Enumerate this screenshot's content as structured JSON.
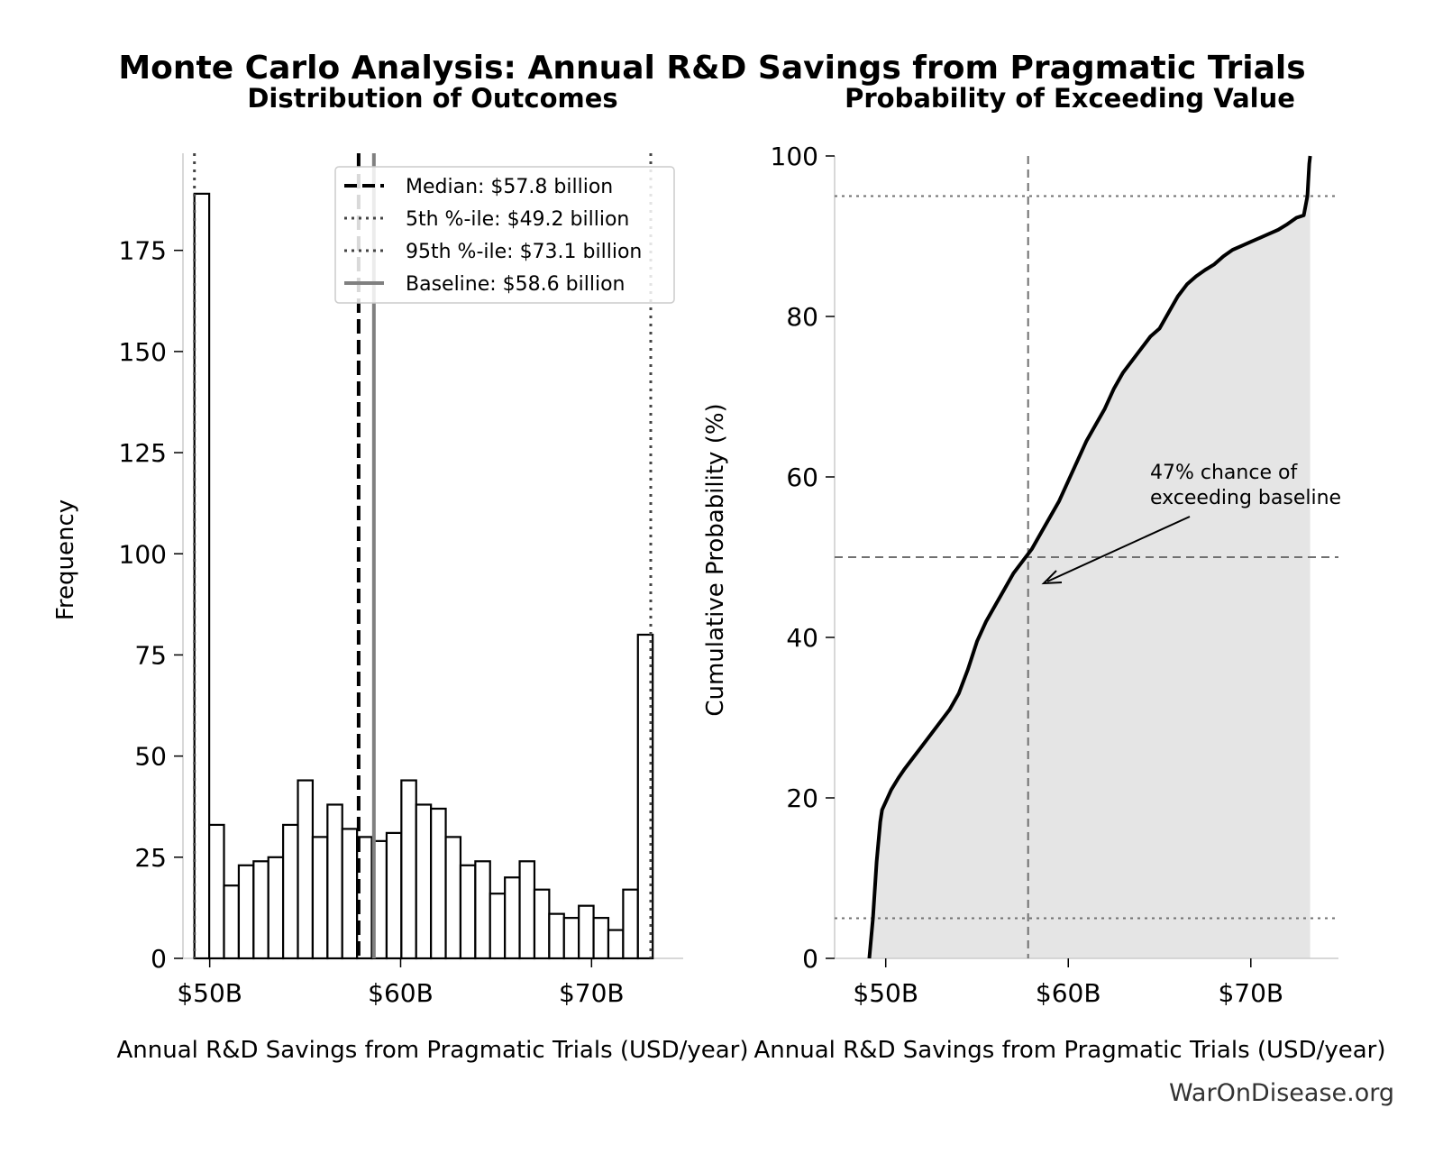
{
  "suptitle": "Monte Carlo Analysis: Annual R&D Savings from Pragmatic Trials",
  "watermark": "WarOnDisease.org",
  "colors": {
    "line": "#000000",
    "baseline": "#808080",
    "fill": "#e5e5e5",
    "ref_line": "#707070",
    "axis": "#cccccc"
  },
  "chart_data": [
    {
      "type": "bar",
      "title": "Distribution of Outcomes",
      "xlabel": "Annual R&D Savings from Pragmatic Trials (USD/year)",
      "ylabel": "Frequency",
      "xlim": [
        48.6,
        74.8
      ],
      "ylim": [
        0,
        199
      ],
      "xticks": [
        50,
        60,
        70
      ],
      "xtick_labels": [
        "$50B",
        "$60B",
        "$70B"
      ],
      "yticks": [
        0,
        25,
        50,
        75,
        100,
        125,
        150,
        175
      ],
      "bin_start": 49.2,
      "bin_width": 0.7743,
      "values": [
        189,
        33,
        18,
        23,
        24,
        25,
        33,
        44,
        30,
        38,
        32,
        30,
        29,
        31,
        44,
        38,
        37,
        30,
        23,
        24,
        16,
        20,
        24,
        17,
        11,
        10,
        13,
        10,
        7,
        17,
        80
      ],
      "reference_lines": [
        {
          "label": "Median: $57.8 billion",
          "x": 57.8,
          "style": "dashed"
        },
        {
          "label": "5th %-ile: $49.2 billion",
          "x": 49.2,
          "style": "dotted"
        },
        {
          "label": "95th %-ile: $73.1 billion",
          "x": 73.1,
          "style": "dotted"
        },
        {
          "label": "Baseline: $58.6 billion",
          "x": 58.6,
          "style": "solid"
        }
      ],
      "legend_position": "top-right",
      "grid": false
    },
    {
      "type": "area",
      "title": "Probability of Exceeding Value",
      "xlabel": "Annual R&D Savings from Pragmatic Trials (USD/year)",
      "ylabel": "Cumulative Probability (%)",
      "xlim": [
        47.2,
        74.8
      ],
      "ylim": [
        0,
        100
      ],
      "xticks": [
        50,
        60,
        70
      ],
      "xtick_labels": [
        "$50B",
        "$60B",
        "$70B"
      ],
      "yticks": [
        0,
        20,
        40,
        60,
        80,
        100
      ],
      "x": [
        49.1,
        49.3,
        49.5,
        49.7,
        49.8,
        50.0,
        50.3,
        50.7,
        51.0,
        51.5,
        52.0,
        52.5,
        53.0,
        53.5,
        54.0,
        54.5,
        55.0,
        55.5,
        56.0,
        56.5,
        57.0,
        57.5,
        58.0,
        58.5,
        59.0,
        59.5,
        60.0,
        60.5,
        61.0,
        61.5,
        62.0,
        62.5,
        63.0,
        63.5,
        64.0,
        64.5,
        65.0,
        65.5,
        66.0,
        66.5,
        67.0,
        67.5,
        68.0,
        68.5,
        69.0,
        69.5,
        70.0,
        70.5,
        71.0,
        71.5,
        72.0,
        72.5,
        72.9,
        73.1,
        73.2,
        73.25
      ],
      "y": [
        0,
        5,
        12,
        17,
        18.5,
        19.5,
        21,
        22.5,
        23.5,
        25,
        26.5,
        28,
        29.5,
        31,
        33,
        36,
        39.5,
        42,
        44,
        46,
        48,
        49.5,
        51,
        53,
        55,
        57,
        59.5,
        62,
        64.5,
        66.5,
        68.5,
        71,
        73,
        74.5,
        76,
        77.5,
        78.5,
        80.5,
        82.5,
        84,
        85,
        85.8,
        86.5,
        87.5,
        88.3,
        88.8,
        89.3,
        89.8,
        90.3,
        90.8,
        91.5,
        92.3,
        92.6,
        95,
        99,
        100
      ],
      "reference_lines": [
        {
          "axis": "y",
          "value": 95,
          "style": "dotted"
        },
        {
          "axis": "y",
          "value": 50,
          "style": "dashed"
        },
        {
          "axis": "y",
          "value": 5,
          "style": "dotted"
        },
        {
          "axis": "x",
          "value": 57.8,
          "style": "dashed"
        }
      ],
      "annotation": {
        "text_line1": "47% chance of",
        "text_line2": "exceeding baseline",
        "x": 58.6,
        "y": 47
      },
      "grid": false
    }
  ]
}
